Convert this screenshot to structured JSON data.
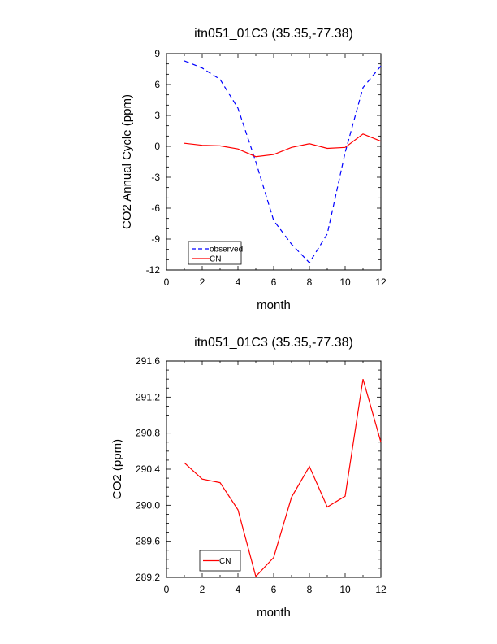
{
  "chart_data": [
    {
      "type": "line",
      "title": "itn051_01C3 (35.35,-77.38)",
      "xlabel": "month",
      "ylabel": "CO2 Annual Cycle (ppm)",
      "xlim": [
        0,
        12
      ],
      "ylim": [
        -12,
        9
      ],
      "xticks": [
        "0",
        "2",
        "4",
        "6",
        "8",
        "10",
        "12"
      ],
      "yticks": [
        "-12",
        "-9",
        "-6",
        "-3",
        "0",
        "3",
        "6",
        "9"
      ],
      "x": [
        1,
        2,
        3,
        4,
        5,
        6,
        7,
        8,
        9,
        10,
        11,
        12
      ],
      "series": [
        {
          "name": "observed",
          "color": "#0000ff",
          "dash": true,
          "values": [
            8.3,
            7.6,
            6.5,
            3.7,
            -1.5,
            -7.2,
            -9.5,
            -11.3,
            -8.5,
            -0.6,
            5.7,
            7.8
          ]
        },
        {
          "name": "CN",
          "color": "#ff0000",
          "dash": false,
          "values": [
            0.3,
            0.1,
            0.05,
            -0.25,
            -1.0,
            -0.8,
            -0.1,
            0.25,
            -0.2,
            -0.1,
            1.2,
            0.5
          ]
        }
      ],
      "legend": "bottom-left"
    },
    {
      "type": "line",
      "title": "itn051_01C3 (35.35,-77.38)",
      "xlabel": "month",
      "ylabel": "CO2 (ppm)",
      "xlim": [
        0,
        12
      ],
      "ylim": [
        289.2,
        291.6
      ],
      "xticks": [
        "0",
        "2",
        "4",
        "6",
        "8",
        "10",
        "12"
      ],
      "yticks": [
        "289.2",
        "289.6",
        "290.0",
        "290.4",
        "290.8",
        "291.2",
        "291.6"
      ],
      "x": [
        1,
        2,
        3,
        4,
        5,
        6,
        7,
        8,
        9,
        10,
        11,
        12
      ],
      "series": [
        {
          "name": "CN",
          "color": "#ff0000",
          "dash": false,
          "values": [
            290.47,
            290.29,
            290.25,
            289.95,
            289.21,
            289.42,
            290.09,
            290.43,
            289.98,
            290.1,
            291.4,
            290.7
          ]
        }
      ],
      "legend": "bottom-left"
    }
  ]
}
